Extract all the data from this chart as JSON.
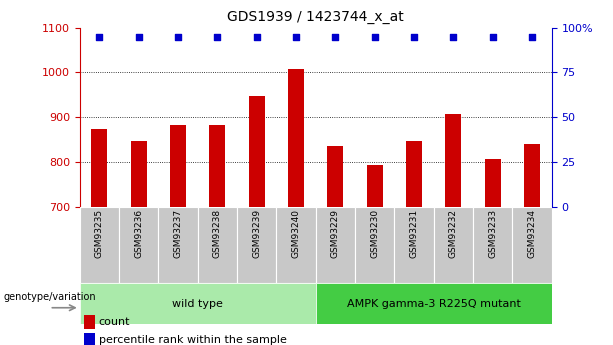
{
  "title": "GDS1939 / 1423744_x_at",
  "samples": [
    "GSM93235",
    "GSM93236",
    "GSM93237",
    "GSM93238",
    "GSM93239",
    "GSM93240",
    "GSM93229",
    "GSM93230",
    "GSM93231",
    "GSM93232",
    "GSM93233",
    "GSM93234"
  ],
  "counts": [
    875,
    848,
    882,
    882,
    947,
    1007,
    836,
    793,
    848,
    908,
    808,
    840
  ],
  "percentile_yval": 1080,
  "bar_color": "#cc0000",
  "dot_color": "#0000cc",
  "ylim_left": [
    700,
    1100
  ],
  "ylim_right": [
    0,
    100
  ],
  "yticks_left": [
    700,
    800,
    900,
    1000,
    1100
  ],
  "yticks_right": [
    0,
    25,
    50,
    75,
    100
  ],
  "ytick_right_labels": [
    "0",
    "25",
    "50",
    "75",
    "100%"
  ],
  "grid_values": [
    800,
    900,
    1000
  ],
  "group1_label": "wild type",
  "group2_label": "AMPK gamma-3 R225Q mutant",
  "group1_count": 6,
  "group2_count": 6,
  "xlabel_bottom": "genotype/variation",
  "legend_count_label": "count",
  "legend_percentile_label": "percentile rank within the sample",
  "bg_color": "#ffffff",
  "tick_area_color": "#c8c8c8",
  "group1_color": "#aaeaaa",
  "group2_color": "#44cc44",
  "bar_width": 0.4
}
